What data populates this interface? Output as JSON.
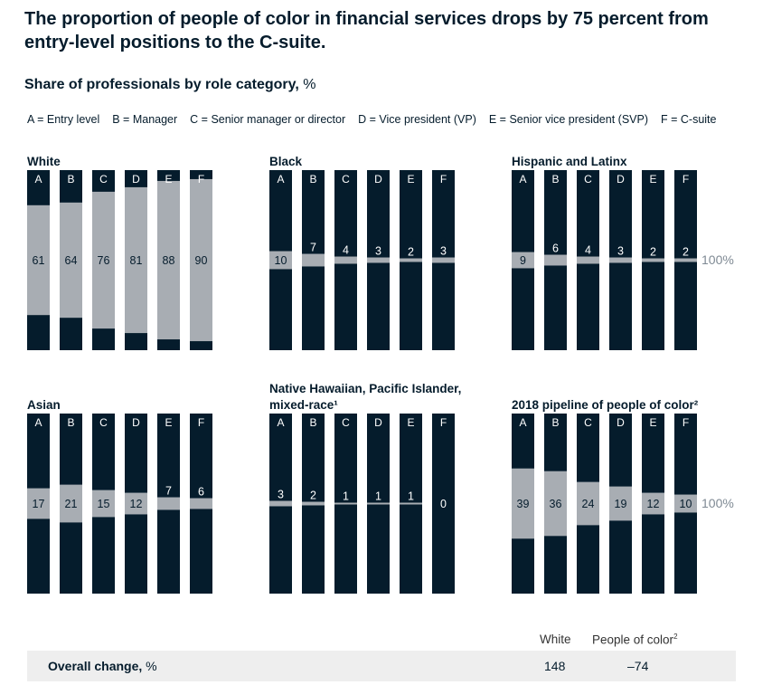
{
  "title": "The proportion of people of color in financial services drops by 75 percent from entry-level positions to the C-suite.",
  "subtitle": "Share of professionals by role category,",
  "subtitle_unit": "%",
  "legend": [
    "A = Entry level",
    "B = Manager",
    "C = Senior manager or director",
    "D = Vice president (VP)",
    "E = Senior vice president (SVP)",
    "F = C-suite"
  ],
  "colors": {
    "dark": "#051c2c",
    "light": "#a8adb3",
    "band": "#eeeeee"
  },
  "pct_label": "100%",
  "chart_data": [
    {
      "type": "bar",
      "title": "White",
      "categories": [
        "A",
        "B",
        "C",
        "D",
        "E",
        "F"
      ],
      "values": [
        61,
        64,
        76,
        81,
        88,
        90
      ],
      "ylim": [
        0,
        100
      ]
    },
    {
      "type": "bar",
      "title": "Black",
      "categories": [
        "A",
        "B",
        "C",
        "D",
        "E",
        "F"
      ],
      "values": [
        10,
        7,
        4,
        3,
        2,
        3
      ],
      "ylim": [
        0,
        100
      ]
    },
    {
      "type": "bar",
      "title": "Hispanic and Latinx",
      "categories": [
        "A",
        "B",
        "C",
        "D",
        "E",
        "F"
      ],
      "values": [
        9,
        6,
        4,
        3,
        2,
        2
      ],
      "ylim": [
        0,
        100
      ]
    },
    {
      "type": "bar",
      "title": "Asian",
      "categories": [
        "A",
        "B",
        "C",
        "D",
        "E",
        "F"
      ],
      "values": [
        17,
        21,
        15,
        12,
        7,
        6
      ],
      "ylim": [
        0,
        100
      ]
    },
    {
      "type": "bar",
      "title": "Native Hawaiian, Pacific Islander, mixed-race¹",
      "categories": [
        "A",
        "B",
        "C",
        "D",
        "E",
        "F"
      ],
      "values": [
        3,
        2,
        1,
        1,
        1,
        0
      ],
      "ylim": [
        0,
        100
      ]
    },
    {
      "type": "bar",
      "title": "2018 pipeline of people of color²",
      "categories": [
        "A",
        "B",
        "C",
        "D",
        "E",
        "F"
      ],
      "values": [
        39,
        36,
        24,
        19,
        12,
        10
      ],
      "ylim": [
        0,
        100
      ]
    }
  ],
  "overall_change": {
    "label": "Overall change,",
    "unit": "%",
    "col_white": "White",
    "col_poc": "People of color",
    "col_poc_sup": "2",
    "white_value": "148",
    "poc_value": "–74"
  }
}
